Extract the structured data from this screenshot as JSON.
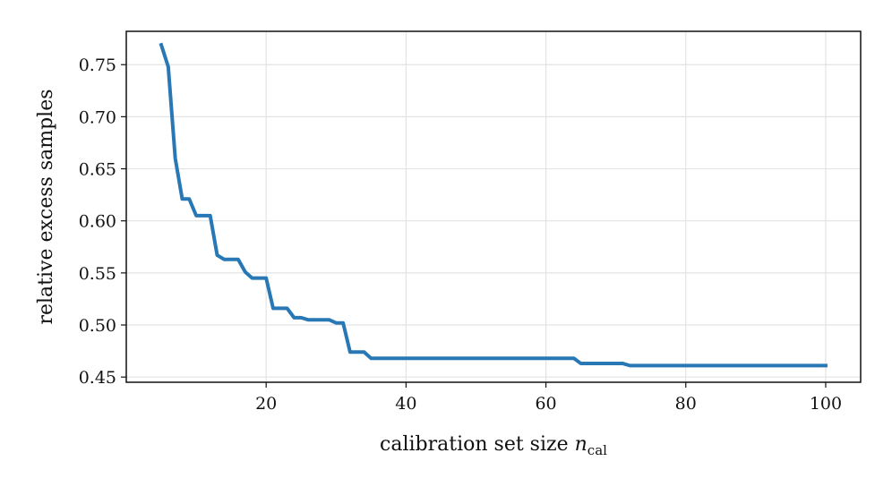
{
  "chart_data": {
    "type": "line",
    "xlabel": "calibration set size ",
    "xlabel_var": "n",
    "xlabel_sub": "cal",
    "ylabel": "relative excess samples",
    "xlim": [
      0,
      105
    ],
    "ylim": [
      0.445,
      0.782
    ],
    "xticks": [
      20,
      40,
      60,
      80,
      100
    ],
    "xtick_labels": [
      "20",
      "40",
      "60",
      "80",
      "100"
    ],
    "yticks": [
      0.45,
      0.5,
      0.55,
      0.6,
      0.65,
      0.7,
      0.75
    ],
    "ytick_labels": [
      "0.45",
      "0.50",
      "0.55",
      "0.60",
      "0.65",
      "0.70",
      "0.75"
    ],
    "grid": true,
    "series": [
      {
        "color": "#2878b5",
        "x": [
          5,
          6,
          7,
          8,
          9,
          10,
          11,
          12,
          13,
          14,
          15,
          16,
          17,
          18,
          19,
          20,
          21,
          22,
          23,
          24,
          25,
          26,
          27,
          28,
          29,
          30,
          31,
          32,
          33,
          34,
          35,
          40,
          50,
          60,
          64,
          65,
          66,
          70,
          71,
          72,
          80,
          90,
          100
        ],
        "y": [
          0.769,
          0.748,
          0.66,
          0.621,
          0.621,
          0.605,
          0.605,
          0.605,
          0.567,
          0.563,
          0.563,
          0.563,
          0.551,
          0.545,
          0.545,
          0.545,
          0.516,
          0.516,
          0.516,
          0.507,
          0.507,
          0.505,
          0.505,
          0.505,
          0.505,
          0.502,
          0.502,
          0.474,
          0.474,
          0.474,
          0.468,
          0.468,
          0.468,
          0.468,
          0.468,
          0.463,
          0.463,
          0.463,
          0.463,
          0.461,
          0.461,
          0.461,
          0.461
        ]
      }
    ]
  }
}
